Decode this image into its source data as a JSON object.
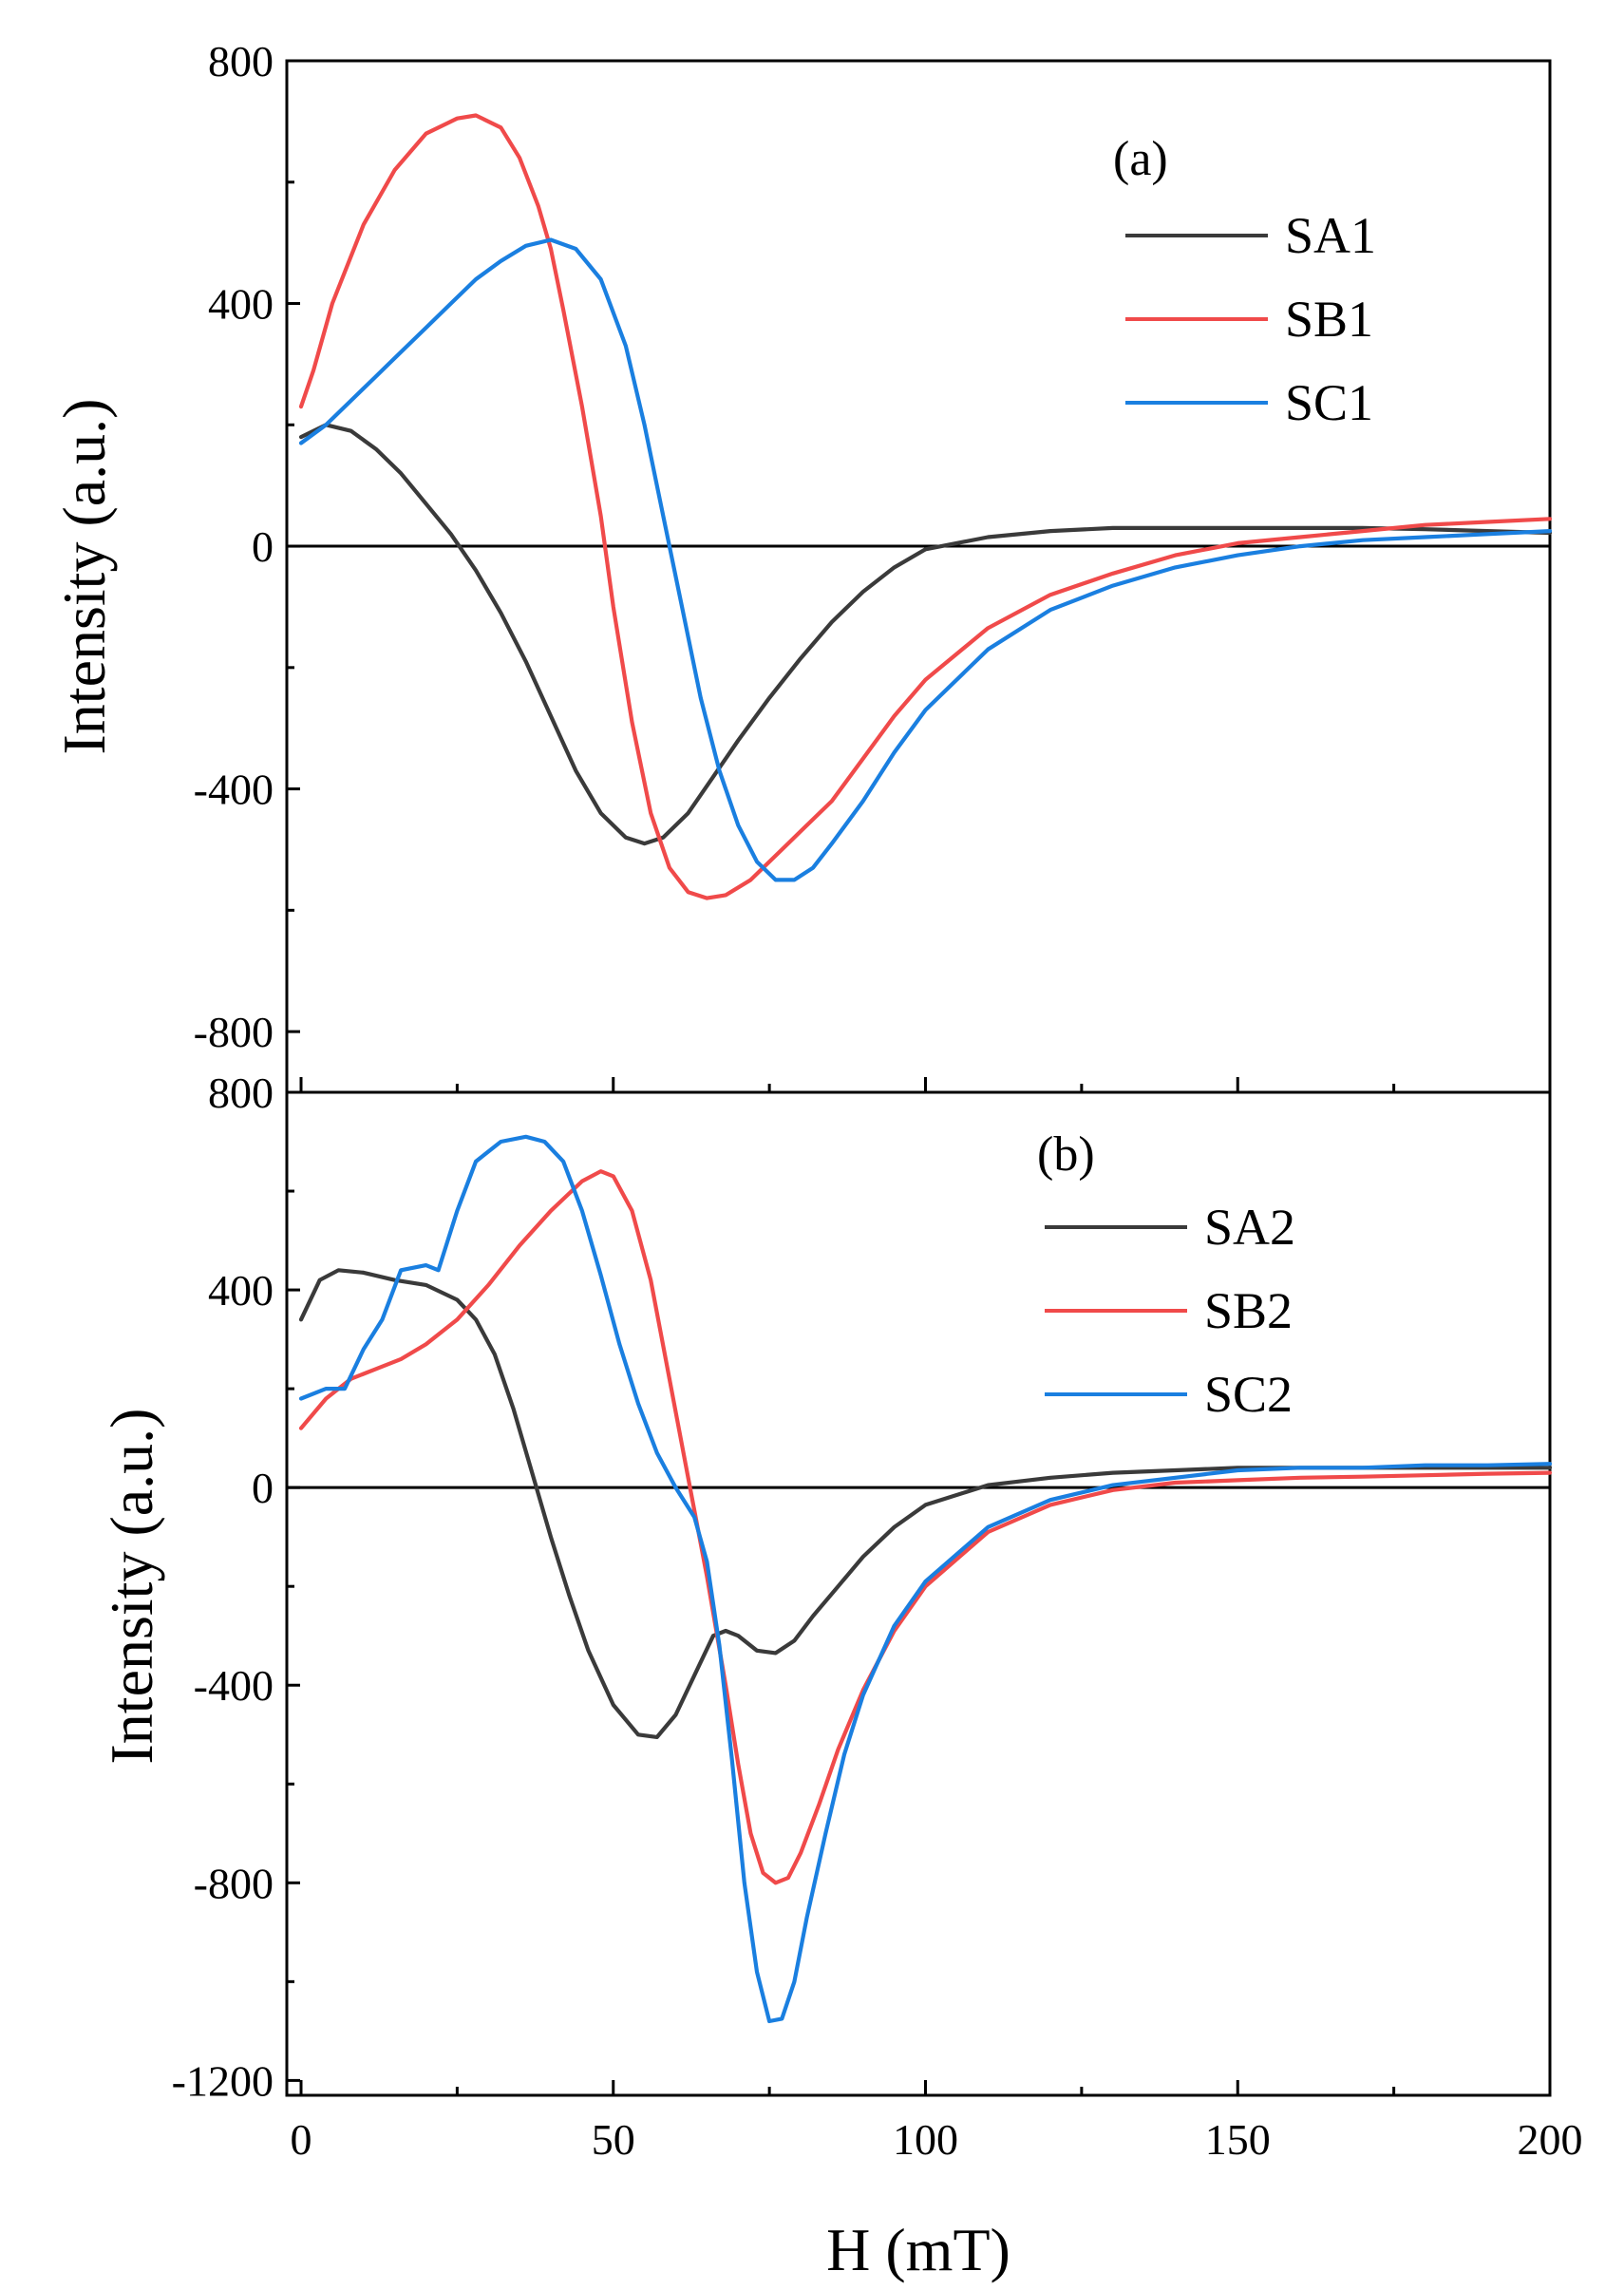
{
  "colors": {
    "SA": "#3a3a3a",
    "SB": "#f04a4a",
    "SC": "#1a7fe0"
  },
  "chart_data": [
    {
      "type": "line",
      "panel_label": "(a)",
      "xlabel": "",
      "ylabel": "Intensity (a.u.)",
      "xlim": [
        0,
        200
      ],
      "ylim": [
        -900,
        800
      ],
      "yticks": [
        -800,
        -400,
        0,
        400,
        800
      ],
      "ytick_labels": [
        "-800",
        "-400",
        "0",
        "400",
        "800"
      ],
      "legend_position": "top-right",
      "series": [
        {
          "name": "SA1",
          "color_key": "SA",
          "x": [
            0,
            4,
            8,
            12,
            16,
            20,
            24,
            28,
            32,
            36,
            40,
            44,
            48,
            52,
            55,
            58,
            62,
            66,
            70,
            75,
            80,
            85,
            90,
            95,
            100,
            110,
            120,
            130,
            140,
            150,
            160,
            170,
            180,
            190,
            200
          ],
          "y": [
            180,
            200,
            190,
            160,
            120,
            70,
            20,
            -40,
            -110,
            -190,
            -280,
            -370,
            -440,
            -480,
            -490,
            -480,
            -440,
            -380,
            -320,
            -250,
            -185,
            -125,
            -75,
            -35,
            -5,
            15,
            25,
            30,
            30,
            30,
            30,
            30,
            28,
            25,
            22
          ]
        },
        {
          "name": "SB1",
          "color_key": "SB",
          "x": [
            0,
            2,
            5,
            10,
            15,
            20,
            25,
            28,
            32,
            35,
            38,
            40,
            42,
            45,
            48,
            50,
            53,
            56,
            59,
            62,
            65,
            68,
            72,
            76,
            80,
            85,
            90,
            95,
            100,
            110,
            120,
            130,
            140,
            150,
            160,
            170,
            180,
            190,
            200
          ],
          "y": [
            230,
            290,
            400,
            530,
            620,
            680,
            705,
            710,
            690,
            640,
            560,
            490,
            390,
            230,
            50,
            -100,
            -290,
            -440,
            -530,
            -570,
            -580,
            -575,
            -550,
            -510,
            -470,
            -420,
            -350,
            -280,
            -220,
            -135,
            -80,
            -45,
            -15,
            5,
            15,
            25,
            35,
            40,
            45
          ]
        },
        {
          "name": "SC1",
          "color_key": "SC",
          "x": [
            0,
            4,
            8,
            12,
            16,
            20,
            24,
            28,
            32,
            36,
            40,
            44,
            48,
            52,
            55,
            58,
            61,
            64,
            67,
            70,
            73,
            76,
            79,
            82,
            85,
            90,
            95,
            100,
            110,
            120,
            130,
            140,
            150,
            160,
            170,
            180,
            190,
            200
          ],
          "y": [
            170,
            200,
            240,
            280,
            320,
            360,
            400,
            440,
            470,
            495,
            505,
            490,
            440,
            330,
            200,
            50,
            -100,
            -250,
            -370,
            -460,
            -520,
            -550,
            -550,
            -530,
            -490,
            -420,
            -340,
            -270,
            -170,
            -105,
            -65,
            -35,
            -15,
            0,
            10,
            15,
            20,
            25
          ]
        }
      ]
    },
    {
      "type": "line",
      "panel_label": "(b)",
      "xlabel": "H (mT)",
      "ylabel": "Intensity (a.u.)",
      "xlim": [
        0,
        200
      ],
      "ylim": [
        -1230,
        800
      ],
      "xticks": [
        0,
        50,
        100,
        150,
        200
      ],
      "xtick_labels": [
        "0",
        "50",
        "100",
        "150",
        "200"
      ],
      "yticks": [
        -1200,
        -800,
        -400,
        0,
        400,
        800
      ],
      "ytick_labels": [
        "-1200",
        "-800",
        "-400",
        "0",
        "400",
        "800"
      ],
      "legend_position": "top-right",
      "series": [
        {
          "name": "SA2",
          "color_key": "SA",
          "x": [
            0,
            3,
            6,
            10,
            15,
            20,
            25,
            28,
            31,
            34,
            37,
            40,
            43,
            46,
            50,
            54,
            57,
            60,
            63,
            66,
            68,
            70,
            73,
            76,
            79,
            82,
            86,
            90,
            95,
            100,
            110,
            120,
            130,
            140,
            150,
            160,
            170,
            180,
            190,
            200
          ],
          "y": [
            340,
            420,
            440,
            435,
            420,
            410,
            380,
            340,
            270,
            160,
            30,
            -100,
            -220,
            -330,
            -440,
            -500,
            -505,
            -460,
            -380,
            -300,
            -290,
            -300,
            -330,
            -335,
            -310,
            -260,
            -200,
            -140,
            -80,
            -35,
            5,
            20,
            30,
            35,
            40,
            40,
            40,
            40,
            40,
            40
          ]
        },
        {
          "name": "SB2",
          "color_key": "SB",
          "x": [
            0,
            4,
            8,
            12,
            16,
            20,
            25,
            30,
            35,
            40,
            45,
            48,
            50,
            53,
            56,
            59,
            62,
            65,
            68,
            70,
            72,
            74,
            76,
            78,
            80,
            83,
            86,
            90,
            95,
            100,
            110,
            120,
            130,
            140,
            150,
            160,
            170,
            180,
            190,
            200
          ],
          "y": [
            120,
            180,
            220,
            240,
            260,
            290,
            340,
            410,
            490,
            560,
            620,
            640,
            630,
            560,
            420,
            220,
            20,
            -180,
            -400,
            -560,
            -700,
            -780,
            -800,
            -790,
            -740,
            -640,
            -530,
            -410,
            -290,
            -200,
            -90,
            -35,
            -5,
            10,
            15,
            20,
            22,
            25,
            28,
            30
          ]
        },
        {
          "name": "SC2",
          "color_key": "SC",
          "x": [
            0,
            4,
            7,
            10,
            13,
            16,
            20,
            22,
            25,
            28,
            32,
            36,
            39,
            42,
            45,
            48,
            51,
            54,
            57,
            60,
            63,
            65,
            67,
            69,
            71,
            73,
            75,
            77,
            79,
            81,
            84,
            87,
            90,
            95,
            100,
            110,
            120,
            130,
            140,
            150,
            160,
            170,
            180,
            190,
            200
          ],
          "y": [
            180,
            200,
            200,
            280,
            340,
            440,
            450,
            440,
            560,
            660,
            700,
            710,
            700,
            660,
            560,
            430,
            290,
            170,
            70,
            0,
            -60,
            -150,
            -320,
            -550,
            -800,
            -980,
            -1080,
            -1075,
            -1000,
            -870,
            -700,
            -540,
            -420,
            -280,
            -190,
            -80,
            -25,
            5,
            20,
            35,
            40,
            40,
            45,
            45,
            48
          ]
        }
      ]
    }
  ]
}
